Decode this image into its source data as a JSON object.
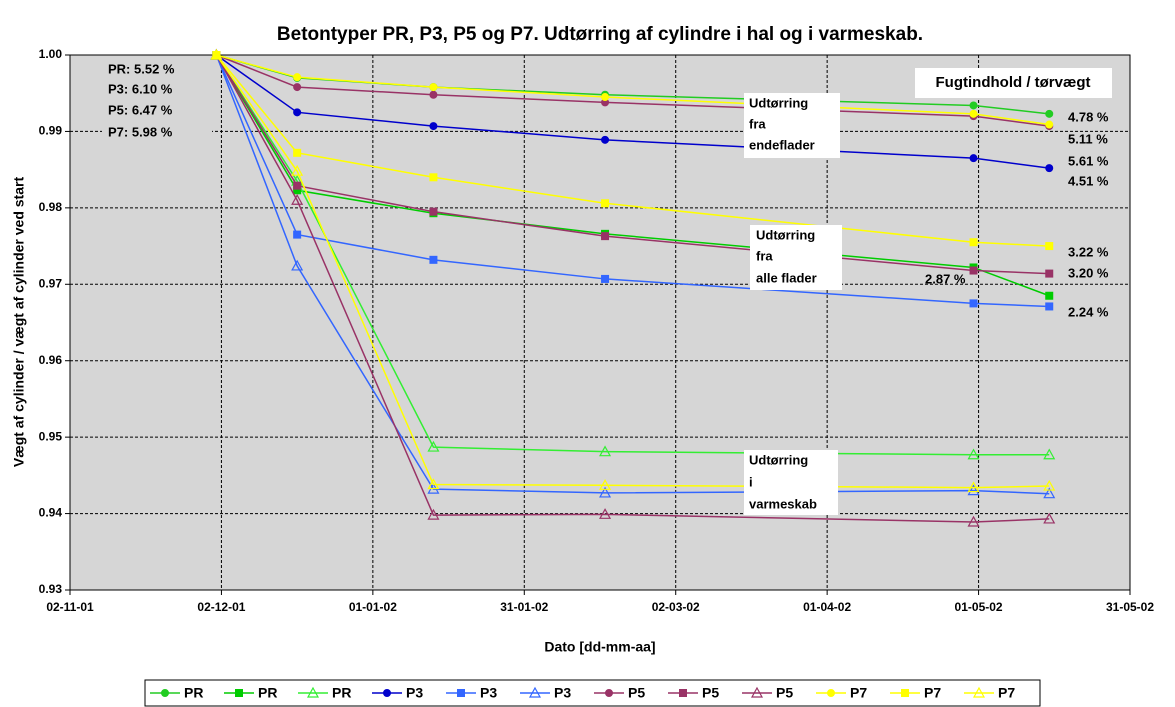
{
  "chart_data": {
    "type": "line",
    "title": "Betontyper PR, P3, P5 og P7. Udtørring af cylindre i hal og i varmeskab.",
    "xlabel": "Dato [dd-mm-aa]",
    "ylabel": "Vægt af cylinder / vægt af cylinder ved start",
    "x": [
      "2001-12-01",
      "2001-12-17",
      "2002-01-13",
      "2002-02-16",
      "2002-04-30",
      "2002-05-15"
    ],
    "xlim": [
      "2001-11-02",
      "2002-05-31"
    ],
    "xticks": [
      {
        "value": "2001-11-02",
        "label": "02-11-01"
      },
      {
        "value": "2001-12-02",
        "label": "02-12-01"
      },
      {
        "value": "2002-01-01",
        "label": "01-01-02"
      },
      {
        "value": "2002-01-31",
        "label": "31-01-02"
      },
      {
        "value": "2002-03-02",
        "label": "02-03-02"
      },
      {
        "value": "2002-04-01",
        "label": "01-04-02"
      },
      {
        "value": "2002-05-01",
        "label": "01-05-02"
      },
      {
        "value": "2002-05-31",
        "label": "31-05-02"
      }
    ],
    "ylim": [
      0.93,
      1.0
    ],
    "yticks": [
      {
        "value": 0.93,
        "label": "0.93"
      },
      {
        "value": 0.94,
        "label": "0.94"
      },
      {
        "value": 0.95,
        "label": "0.95"
      },
      {
        "value": 0.96,
        "label": "0.96"
      },
      {
        "value": 0.97,
        "label": "0.97"
      },
      {
        "value": 0.98,
        "label": "0.98"
      },
      {
        "value": 0.99,
        "label": "0.99"
      },
      {
        "value": 1.0,
        "label": "1.00"
      }
    ],
    "grid": true,
    "legend": "bottom",
    "series": [
      {
        "name": "PR",
        "color": "#22cc22",
        "marker": "circle",
        "values": [
          1.0,
          0.997,
          0.9958,
          0.9948,
          0.9934,
          0.9923
        ]
      },
      {
        "name": "PR",
        "color": "#00cc00",
        "marker": "square",
        "values": [
          1.0,
          0.9823,
          0.9793,
          0.9766,
          0.9722,
          0.9685
        ]
      },
      {
        "name": "PR",
        "color": "#33ee33",
        "marker": "triangle",
        "values": [
          1.0,
          0.9835,
          0.9487,
          0.9481,
          0.9477,
          0.9477
        ]
      },
      {
        "name": "P3",
        "color": "#0000cc",
        "marker": "circle",
        "values": [
          1.0,
          0.9925,
          0.9907,
          0.9889,
          0.9865,
          0.9852
        ]
      },
      {
        "name": "P3",
        "color": "#3366ff",
        "marker": "square",
        "values": [
          1.0,
          0.9765,
          0.9732,
          0.9707,
          0.9675,
          0.9671
        ]
      },
      {
        "name": "P3",
        "color": "#3366ff",
        "marker": "triangle",
        "values": [
          1.0,
          0.9724,
          0.9432,
          0.9427,
          0.943,
          0.9426
        ]
      },
      {
        "name": "P5",
        "color": "#993366",
        "marker": "circle",
        "values": [
          1.0,
          0.9958,
          0.9948,
          0.9938,
          0.992,
          0.9907
        ]
      },
      {
        "name": "P5",
        "color": "#993366",
        "marker": "square",
        "values": [
          1.0,
          0.9829,
          0.9795,
          0.9763,
          0.9718,
          0.9714
        ]
      },
      {
        "name": "P5",
        "color": "#993366",
        "marker": "triangle",
        "values": [
          1.0,
          0.981,
          0.9398,
          0.9399,
          0.9389,
          0.9393
        ]
      },
      {
        "name": "P7",
        "color": "#ffff00",
        "marker": "circle",
        "values": [
          1.0,
          0.9971,
          0.9958,
          0.9945,
          0.9923,
          0.9909
        ]
      },
      {
        "name": "P7",
        "color": "#ffff00",
        "marker": "square",
        "values": [
          1.0,
          0.9872,
          0.984,
          0.9806,
          0.9755,
          0.975
        ]
      },
      {
        "name": "P7",
        "color": "#ffff00",
        "marker": "triangle",
        "values": [
          1.0,
          0.9848,
          0.9438,
          0.9437,
          0.9434,
          0.9436
        ]
      }
    ],
    "annotations": {
      "start_labels": [
        "PR:  5.52 %",
        "P3:  6.10 %",
        "P5:  6.47 %",
        "P7:  5.98 %"
      ],
      "header": "Fugtindhold / tørvægt",
      "right_labels": [
        "4.78 %",
        "5.11 %",
        "5.61 %",
        "4.51 %",
        "3.22 %",
        "3.20 %",
        "2.87 %",
        "2.24 %"
      ],
      "boxes": [
        {
          "lines": [
            "Udtørring",
            "fra",
            "endeflader"
          ]
        },
        {
          "lines": [
            "Udtørring",
            "fra",
            "alle flader"
          ]
        },
        {
          "lines": [
            "Udtørring",
            "i",
            "varmeskab"
          ]
        }
      ]
    }
  }
}
